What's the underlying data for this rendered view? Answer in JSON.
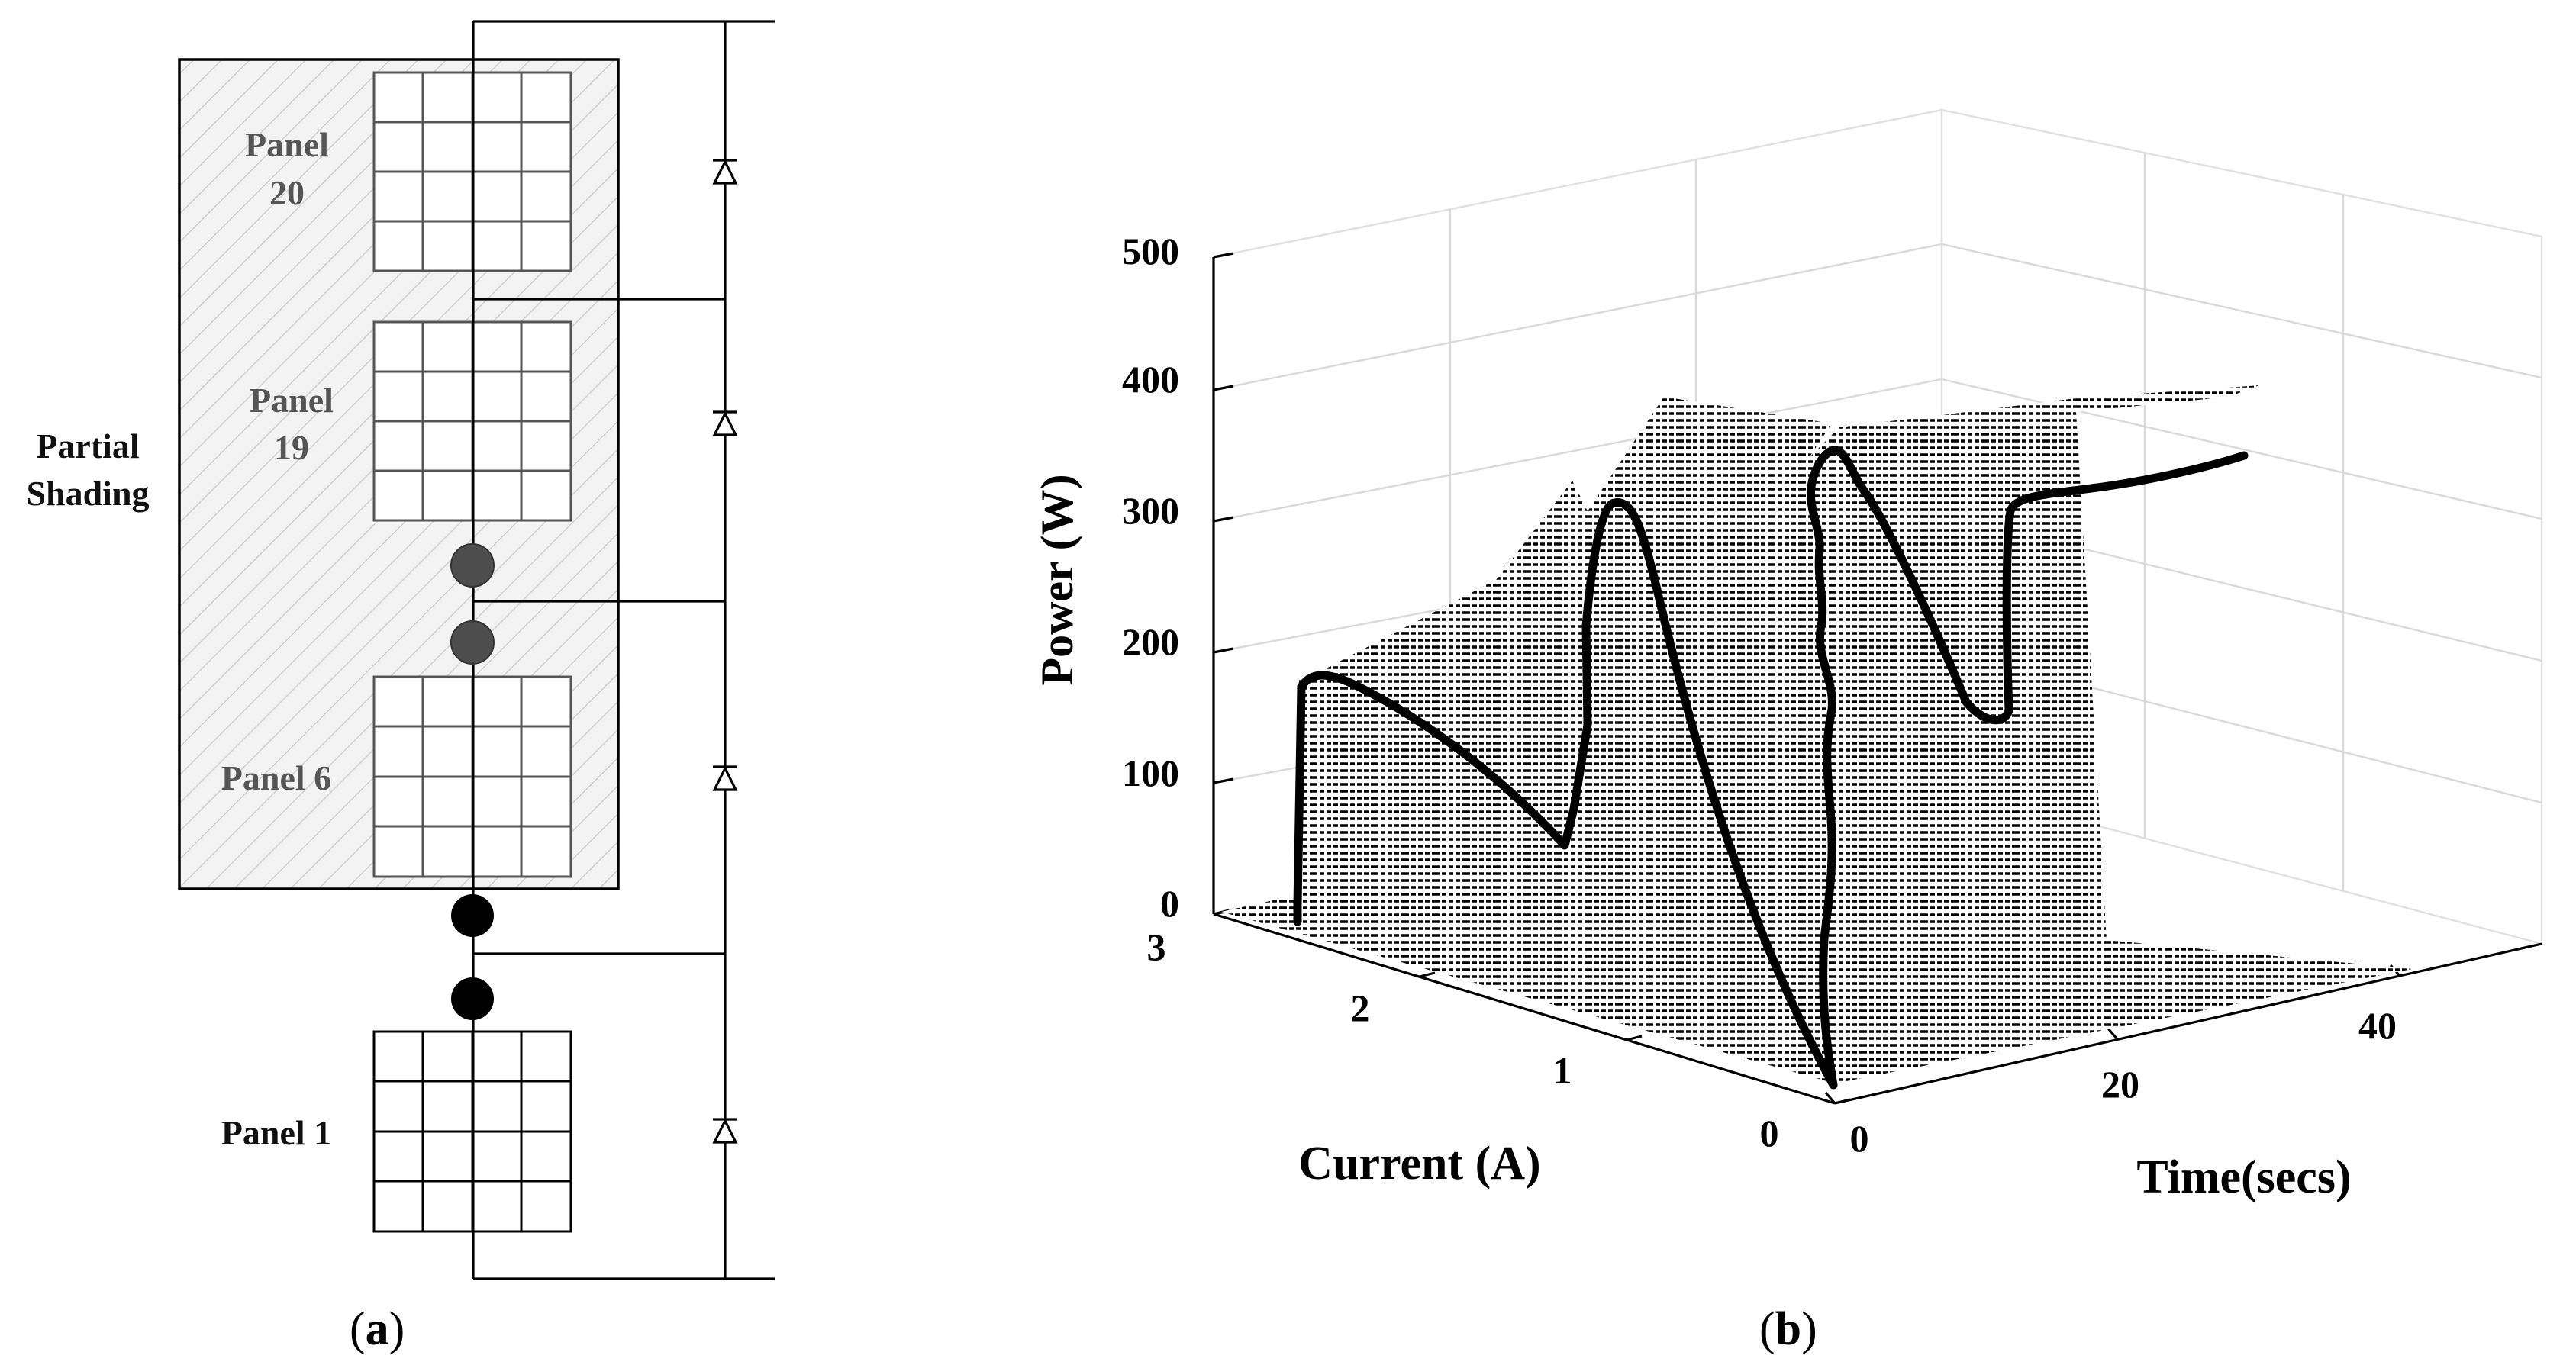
{
  "panel_a": {
    "caption_open": "(",
    "caption_letter": "a",
    "caption_close": ")",
    "shading_label_line1": "Partial",
    "shading_label_line2": "Shading",
    "panels": [
      {
        "id": "panel-20",
        "line1": "Panel",
        "line2": "20",
        "shaded": true
      },
      {
        "id": "panel-19",
        "line1": "Panel",
        "line2": "19",
        "shaded": true
      },
      {
        "id": "panel-6",
        "line1": "Panel 6",
        "line2": "",
        "shaded": true
      },
      {
        "id": "panel-1",
        "line1": "Panel 1",
        "line2": "",
        "shaded": false
      }
    ],
    "colors": {
      "shaded_label": "#555555",
      "shaded_dots": "#4d4d4d",
      "normal_dots": "#000000"
    }
  },
  "panel_b": {
    "caption_open": "(",
    "caption_letter": "b",
    "caption_close": ")",
    "chart_data": {
      "type": "3d-surface",
      "zlabel": "Power (W)",
      "xlabel": "Current (A)",
      "ylabel": "Time(secs)",
      "z_ticks": [
        "0",
        "100",
        "200",
        "300",
        "400",
        "500"
      ],
      "current_ticks": [
        "0",
        "1",
        "2",
        "3"
      ],
      "time_ticks": [
        "0",
        "20",
        "40"
      ],
      "zlim": [
        0,
        500
      ],
      "current_lim": [
        0,
        3
      ],
      "time_lim": [
        0,
        50
      ],
      "grid": true,
      "profiles": [
        {
          "name": "",
          "time": 0,
          "peak_power": 175,
          "peak_current": 2.75
        },
        {
          "name": "",
          "time": 12,
          "peak_power": 310,
          "peak_current": 2.2
        },
        {
          "name": "",
          "time": 30,
          "peak_power": 340,
          "peak_current": 1.8
        },
        {
          "name": "",
          "time": 50,
          "peak_power": 345,
          "peak_current": 1.6
        }
      ]
    }
  }
}
